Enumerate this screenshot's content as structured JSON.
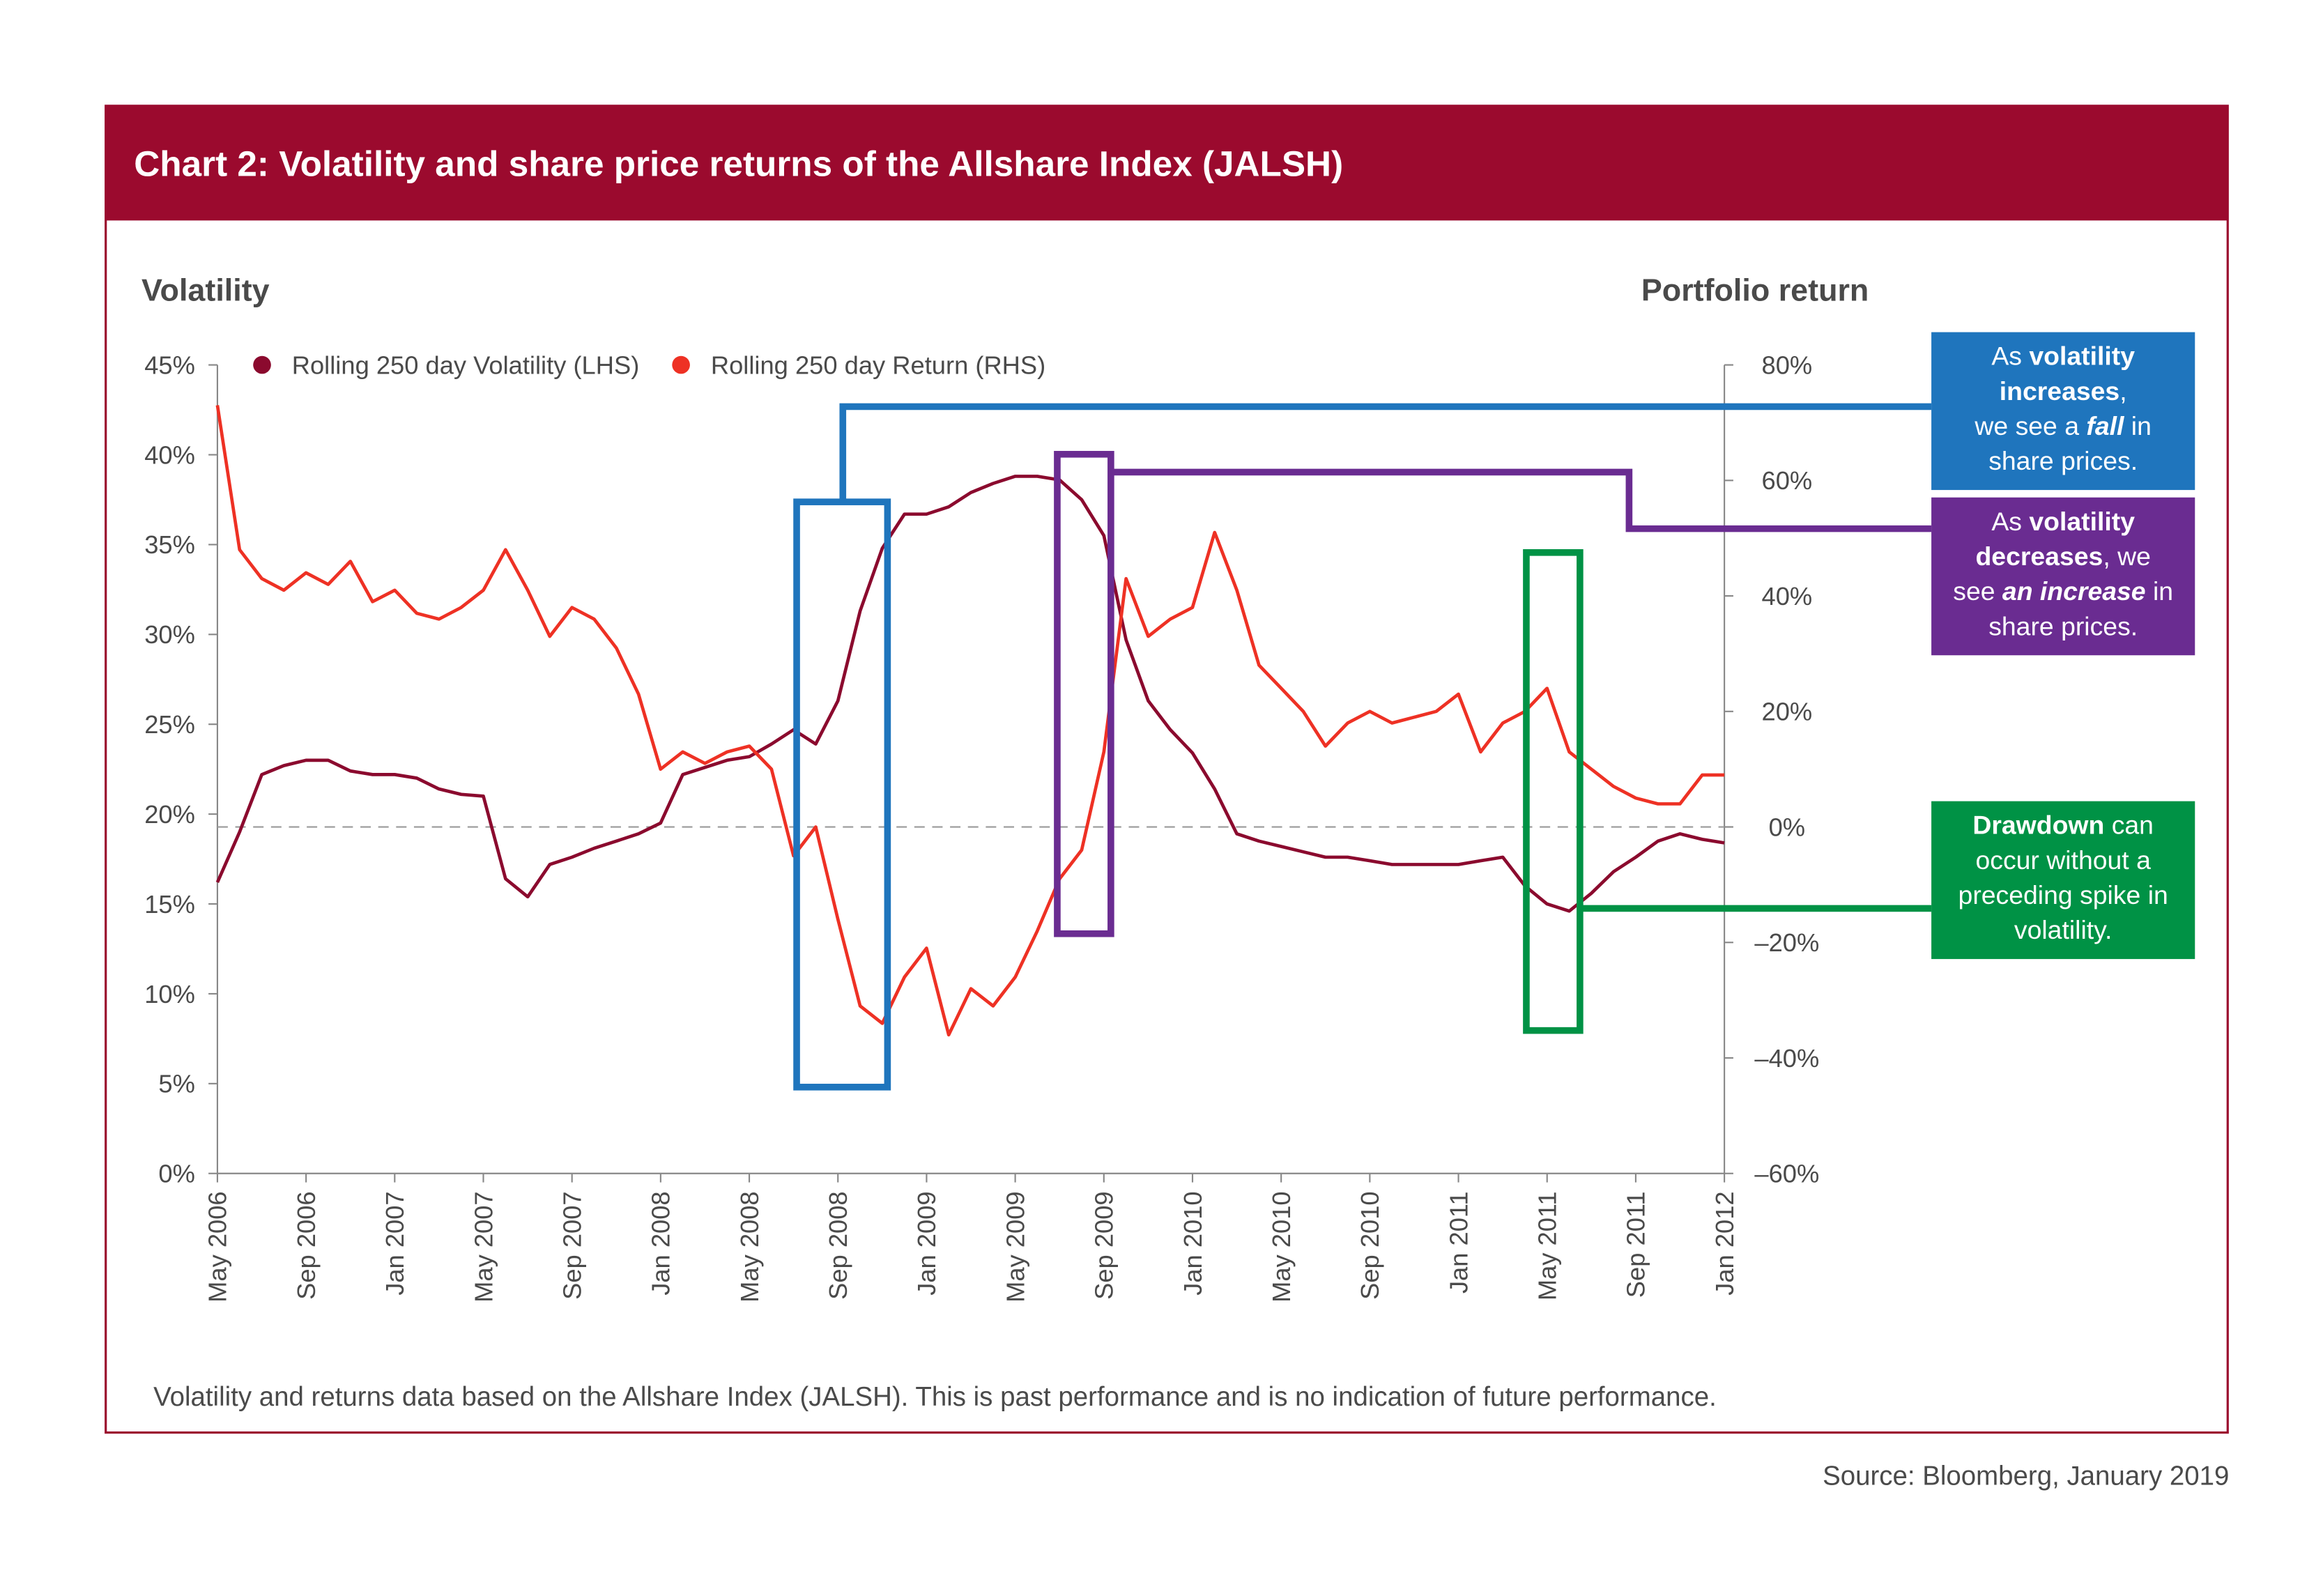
{
  "chart_data": {
    "type": "line",
    "title": "Chart 2: Volatility and share price returns of the Allshare Index (JALSH)",
    "ylabel": "Volatility",
    "y2label": "Portfolio return",
    "footnote": "Volatility and returns data based on the Allshare Index (JALSH). This is past performance and is no indication of future performance.",
    "source": "Source: Bloomberg, January 2019",
    "categories": [
      "May 2006",
      null,
      null,
      null,
      "Sep 2006",
      null,
      null,
      null,
      "Jan 2007",
      null,
      null,
      null,
      "May 2007",
      null,
      null,
      null,
      "Sep 2007",
      null,
      null,
      null,
      "Jan 2008",
      null,
      null,
      null,
      "May 2008",
      null,
      null,
      null,
      "Sep 2008",
      null,
      null,
      null,
      "Jan 2009",
      null,
      null,
      null,
      "May 2009",
      null,
      null,
      null,
      "Sep 2009",
      null,
      null,
      null,
      "Jan 2010",
      null,
      null,
      null,
      "May 2010",
      null,
      null,
      null,
      "Sep 2010",
      null,
      null,
      null,
      "Jan 2011",
      null,
      null,
      null,
      "May 2011",
      null,
      null,
      null,
      "Sep 2011",
      null,
      null,
      null,
      "Jan 2012"
    ],
    "series": [
      {
        "name": "Rolling 250 day Volatility (LHS)",
        "color": "#8b0a2e",
        "axis": "y",
        "values": [
          16.2,
          19,
          22.2,
          22.7,
          23.0,
          23.0,
          22.4,
          22.2,
          22.2,
          22.0,
          21.4,
          21.1,
          21.0,
          16.4,
          15.4,
          17.2,
          17.6,
          18.1,
          18.5,
          18.9,
          19.5,
          22.2,
          22.6,
          23.0,
          23.2,
          23.9,
          24.7,
          23.9,
          26.3,
          31.3,
          34.8,
          36.7,
          36.7,
          37.1,
          37.9,
          38.4,
          38.8,
          38.8,
          38.6,
          37.5,
          35.5,
          29.7,
          26.3,
          24.7,
          23.4,
          21.4,
          18.9,
          18.5,
          18.2,
          17.9,
          17.6,
          17.6,
          17.4,
          17.2,
          17.2,
          17.2,
          17.2,
          17.4,
          17.6,
          16.0,
          15.0,
          14.6,
          15.6,
          16.8,
          17.6,
          18.5,
          18.9,
          18.6,
          18.4
        ]
      },
      {
        "name": "Rolling 250 day Return (RHS)",
        "color": "#ee3124",
        "axis": "y2",
        "values": [
          73,
          48,
          43,
          41,
          44,
          42,
          46,
          39,
          41,
          37,
          36,
          38,
          41,
          48,
          41,
          33,
          38,
          36,
          31,
          23,
          10,
          13,
          11,
          13,
          14,
          10,
          -5,
          0,
          -16,
          -31,
          -34,
          -26,
          -21,
          -36,
          -28,
          -31,
          -26,
          -18,
          -9,
          -4,
          13,
          43,
          33,
          36,
          38,
          51,
          41,
          28,
          24,
          20,
          14,
          18,
          20,
          18,
          19,
          20,
          23,
          13,
          18,
          20,
          24,
          13,
          10,
          7,
          5,
          4,
          4,
          9,
          9
        ]
      }
    ],
    "ylim": [
      0,
      45
    ],
    "yticks": [
      {
        "value": 0,
        "label": "0%"
      },
      {
        "value": 5,
        "label": "5%"
      },
      {
        "value": 10,
        "label": "10%"
      },
      {
        "value": 15,
        "label": "15%"
      },
      {
        "value": 20,
        "label": "20%"
      },
      {
        "value": 25,
        "label": "25%"
      },
      {
        "value": 30,
        "label": "30%"
      },
      {
        "value": 35,
        "label": "35%"
      },
      {
        "value": 40,
        "label": "40%"
      },
      {
        "value": 45,
        "label": "45%"
      }
    ],
    "y2lim": [
      -60,
      80
    ],
    "y2ticks": [
      {
        "value": -60,
        "label": "–60%"
      },
      {
        "value": -40,
        "label": "–40%"
      },
      {
        "value": -20,
        "label": "–20%"
      },
      {
        "value": 0,
        "label": "0%"
      },
      {
        "value": 20,
        "label": "20%"
      },
      {
        "value": 40,
        "label": "40%"
      },
      {
        "value": 60,
        "label": "60%"
      },
      {
        "value": 80,
        "label": "80%"
      }
    ],
    "dashed_zero_line": true,
    "legend_position": "top-left",
    "annotations": [
      {
        "color": "#1f75bd",
        "lines": [
          [
            {
              "text": "As "
            },
            {
              "text": "volatility",
              "bold": true
            }
          ],
          [
            {
              "text": "increases",
              "bold": true
            },
            {
              "text": ","
            }
          ],
          [
            {
              "text": "we see a "
            },
            {
              "text": "fall",
              "bold": true,
              "italic": true
            },
            {
              "text": " in"
            }
          ],
          [
            {
              "text": "share prices."
            }
          ]
        ]
      },
      {
        "color": "#6a2c91",
        "lines": [
          [
            {
              "text": "As "
            },
            {
              "text": "volatility",
              "bold": true
            }
          ],
          [
            {
              "text": "decreases",
              "bold": true
            },
            {
              "text": ", we"
            }
          ],
          [
            {
              "text": "see "
            },
            {
              "text": "an increase",
              "bold": true,
              "italic": true
            },
            {
              "text": " in"
            }
          ],
          [
            {
              "text": "share prices."
            }
          ]
        ]
      },
      {
        "color": "#009245",
        "lines": [
          [
            {
              "text": "Drawdown",
              "bold": true
            },
            {
              "text": " can"
            }
          ],
          [
            {
              "text": "occur without a"
            }
          ],
          [
            {
              "text": "preceding spike in"
            }
          ],
          [
            {
              "text": "volatility."
            }
          ]
        ]
      }
    ]
  }
}
